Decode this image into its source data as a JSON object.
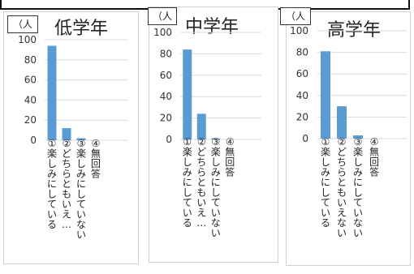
{
  "chart_data": [
    {
      "type": "bar",
      "title": "低学年",
      "unit": "（人",
      "categories": [
        "①楽しみにしている",
        "②どちらともいえ…",
        "③楽しみにしていない",
        "④無回答"
      ],
      "values": [
        94,
        12,
        2,
        0
      ],
      "ylim": [
        0,
        100
      ],
      "yticks": [
        0,
        20,
        40,
        60,
        80,
        100
      ],
      "grid": true,
      "legend": "none",
      "bar_color": "#5b9bd5"
    },
    {
      "type": "bar",
      "title": "中学年",
      "unit": "（人",
      "categories": [
        "①楽しみにしている",
        "②どちらともいえ…",
        "③楽しみにしていない",
        "④無回答"
      ],
      "values": [
        84,
        24,
        1,
        0
      ],
      "ylim": [
        0,
        100
      ],
      "yticks": [
        0,
        20,
        40,
        60,
        80,
        100
      ],
      "grid": true,
      "legend": "none",
      "bar_color": "#5b9bd5"
    },
    {
      "type": "bar",
      "title": "高学年",
      "unit": "（人",
      "categories": [
        "①楽しみにしている",
        "②どちらともいえない",
        "③楽しみにしていない",
        "④無回答"
      ],
      "values": [
        81,
        30,
        3,
        0
      ],
      "ylim": [
        0,
        100
      ],
      "yticks": [
        0,
        20,
        40,
        60,
        80,
        100
      ],
      "grid": true,
      "legend": "none",
      "bar_color": "#5b9bd5"
    }
  ]
}
